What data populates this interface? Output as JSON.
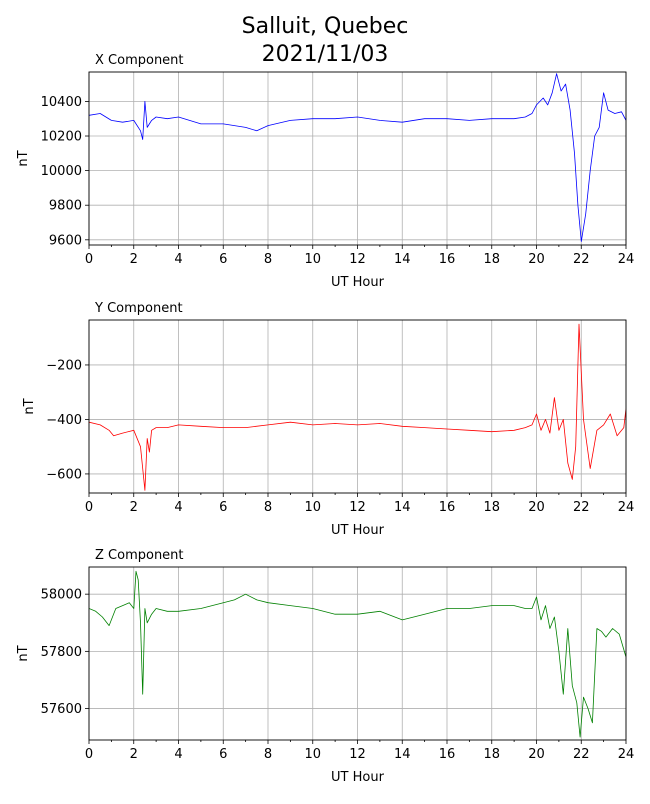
{
  "figure": {
    "title_line1": "Salluit, Quebec",
    "title_line2": "2021/11/03"
  },
  "chart_data": [
    {
      "type": "line",
      "title": "X Component",
      "xlabel": "UT Hour",
      "ylabel": "nT",
      "xlim": [
        0,
        24
      ],
      "ylim": [
        9570,
        10570
      ],
      "xticks": [
        0,
        2,
        4,
        6,
        8,
        10,
        12,
        14,
        16,
        18,
        20,
        22,
        24
      ],
      "yticks": [
        9600,
        9800,
        10000,
        10200,
        10400
      ],
      "grid": true,
      "color": "#0000ff",
      "x": [
        0,
        0.5,
        1.0,
        1.5,
        2.0,
        2.3,
        2.4,
        2.5,
        2.6,
        2.8,
        3.0,
        3.5,
        4.0,
        5.0,
        6.0,
        7.0,
        7.5,
        8.0,
        9.0,
        10.0,
        11.0,
        12.0,
        13.0,
        14.0,
        15.0,
        16.0,
        17.0,
        18.0,
        19.0,
        19.5,
        19.8,
        20.0,
        20.3,
        20.5,
        20.7,
        20.9,
        21.1,
        21.3,
        21.5,
        21.7,
        21.85,
        22.0,
        22.2,
        22.4,
        22.6,
        22.8,
        23.0,
        23.2,
        23.5,
        23.8,
        24.0
      ],
      "y": [
        10320,
        10330,
        10290,
        10280,
        10290,
        10230,
        10180,
        10400,
        10250,
        10290,
        10310,
        10300,
        10310,
        10270,
        10270,
        10250,
        10230,
        10260,
        10290,
        10300,
        10300,
        10310,
        10290,
        10280,
        10300,
        10300,
        10290,
        10300,
        10300,
        10310,
        10330,
        10380,
        10420,
        10380,
        10450,
        10560,
        10460,
        10500,
        10350,
        10100,
        9800,
        9590,
        9750,
        10000,
        10200,
        10250,
        10450,
        10350,
        10330,
        10340,
        10290
      ]
    },
    {
      "type": "line",
      "title": "Y Component",
      "xlabel": "UT Hour",
      "ylabel": "nT",
      "xlim": [
        0,
        24
      ],
      "ylim": [
        -670,
        -35
      ],
      "xticks": [
        0,
        2,
        4,
        6,
        8,
        10,
        12,
        14,
        16,
        18,
        20,
        22,
        24
      ],
      "yticks": [
        -600,
        -400,
        -200
      ],
      "grid": true,
      "color": "#ff0000",
      "x": [
        0,
        0.5,
        0.9,
        1.1,
        1.5,
        2.0,
        2.3,
        2.5,
        2.6,
        2.7,
        2.8,
        3.0,
        3.5,
        4.0,
        5.0,
        6.0,
        7.0,
        8.0,
        9.0,
        10.0,
        11.0,
        12.0,
        13.0,
        14.0,
        15.0,
        16.0,
        17.0,
        18.0,
        19.0,
        19.5,
        19.8,
        20.0,
        20.2,
        20.4,
        20.6,
        20.8,
        21.0,
        21.2,
        21.4,
        21.6,
        21.75,
        21.9,
        22.1,
        22.4,
        22.7,
        23.0,
        23.3,
        23.6,
        23.9,
        24.0
      ],
      "y": [
        -410,
        -420,
        -440,
        -460,
        -450,
        -440,
        -500,
        -660,
        -470,
        -520,
        -440,
        -430,
        -430,
        -420,
        -425,
        -430,
        -430,
        -420,
        -410,
        -420,
        -415,
        -420,
        -415,
        -425,
        -430,
        -435,
        -440,
        -445,
        -440,
        -430,
        -420,
        -380,
        -440,
        -400,
        -450,
        -320,
        -440,
        -400,
        -560,
        -620,
        -500,
        -50,
        -400,
        -580,
        -440,
        -420,
        -380,
        -460,
        -430,
        -360
      ]
    },
    {
      "type": "line",
      "title": "Z Component",
      "xlabel": "UT Hour",
      "ylabel": "nT",
      "xlim": [
        0,
        24
      ],
      "ylim": [
        57490,
        58095
      ],
      "xticks": [
        0,
        2,
        4,
        6,
        8,
        10,
        12,
        14,
        16,
        18,
        20,
        22,
        24
      ],
      "yticks": [
        57600,
        57800,
        58000
      ],
      "grid": true,
      "color": "#008000",
      "x": [
        0,
        0.3,
        0.6,
        0.9,
        1.2,
        1.5,
        1.8,
        2.0,
        2.1,
        2.2,
        2.3,
        2.4,
        2.5,
        2.6,
        2.8,
        3.0,
        3.5,
        4.0,
        5.0,
        6.0,
        6.5,
        7.0,
        7.5,
        8.0,
        9.0,
        10.0,
        11.0,
        12.0,
        13.0,
        14.0,
        15.0,
        16.0,
        17.0,
        18.0,
        19.0,
        19.5,
        19.8,
        20.0,
        20.2,
        20.4,
        20.6,
        20.8,
        21.0,
        21.2,
        21.4,
        21.6,
        21.8,
        21.95,
        22.1,
        22.3,
        22.5,
        22.7,
        22.9,
        23.1,
        23.4,
        23.7,
        24.0
      ],
      "y": [
        57950,
        57940,
        57920,
        57890,
        57950,
        57960,
        57970,
        57950,
        58080,
        58050,
        57900,
        57650,
        57950,
        57900,
        57930,
        57950,
        57940,
        57940,
        57950,
        57970,
        57980,
        58000,
        57980,
        57970,
        57960,
        57950,
        57930,
        57930,
        57940,
        57910,
        57930,
        57950,
        57950,
        57960,
        57960,
        57950,
        57950,
        57990,
        57910,
        57960,
        57880,
        57920,
        57800,
        57650,
        57880,
        57680,
        57620,
        57500,
        57640,
        57600,
        57550,
        57880,
        57870,
        57850,
        57880,
        57860,
        57780
      ]
    }
  ]
}
